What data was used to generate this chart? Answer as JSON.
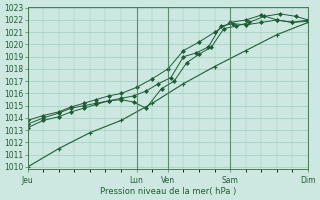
{
  "xlabel": "Pression niveau de la mer( hPa )",
  "bg_color": "#cce8e0",
  "grid_color": "#9ecfbe",
  "line_color": "#1e5c35",
  "vline_color": "#4a7a5a",
  "ylim_min": 1010,
  "ylim_max": 1023,
  "yticks": [
    1010,
    1011,
    1012,
    1013,
    1014,
    1015,
    1016,
    1017,
    1018,
    1019,
    1020,
    1021,
    1022,
    1023
  ],
  "xtick_labels": [
    "Jeu",
    "Lun",
    "Ven",
    "Sam",
    "Dim"
  ],
  "xtick_positions": [
    0,
    3.5,
    4.5,
    6.5,
    9.0
  ],
  "xlim_min": 0,
  "xlim_max": 9.0,
  "line1_x": [
    0,
    0.5,
    1.0,
    1.4,
    1.8,
    2.2,
    2.6,
    3.0,
    3.4,
    3.8,
    4.2,
    4.6,
    5.0,
    5.4,
    5.8,
    6.2,
    6.6,
    7.0,
    7.5,
    8.0,
    8.5,
    9.0
  ],
  "line1_y": [
    1013.2,
    1013.8,
    1014.1,
    1014.5,
    1014.8,
    1015.1,
    1015.4,
    1015.6,
    1015.8,
    1016.2,
    1016.8,
    1017.3,
    1019.0,
    1019.3,
    1019.8,
    1021.5,
    1021.7,
    1021.6,
    1021.8,
    1022.0,
    1021.8,
    1021.9
  ],
  "line2_x": [
    0,
    0.5,
    1.0,
    1.4,
    1.8,
    2.2,
    2.6,
    3.0,
    3.4,
    3.8,
    4.3,
    4.7,
    5.1,
    5.5,
    5.9,
    6.3,
    6.7,
    7.1,
    7.6,
    8.1,
    8.6,
    9.0
  ],
  "line2_y": [
    1013.5,
    1014.0,
    1014.4,
    1014.8,
    1015.0,
    1015.2,
    1015.4,
    1015.5,
    1015.3,
    1014.8,
    1016.4,
    1017.0,
    1018.5,
    1019.2,
    1019.8,
    1021.3,
    1021.5,
    1021.8,
    1022.3,
    1022.5,
    1022.3,
    1022.0
  ],
  "line3_x": [
    0,
    0.5,
    1.0,
    1.4,
    1.8,
    2.2,
    2.6,
    3.0,
    3.5,
    4.0,
    4.5,
    5.0,
    5.5,
    6.0,
    6.5,
    7.0,
    7.5,
    8.0,
    8.5,
    9.0
  ],
  "line3_y": [
    1013.8,
    1014.2,
    1014.5,
    1014.9,
    1015.2,
    1015.5,
    1015.8,
    1016.0,
    1016.5,
    1017.2,
    1018.0,
    1019.5,
    1020.2,
    1021.0,
    1021.8,
    1022.0,
    1022.4,
    1022.0,
    1021.8,
    1022.0
  ],
  "line4_x": [
    0,
    1.0,
    2.0,
    3.0,
    4.0,
    5.0,
    6.0,
    7.0,
    8.0,
    9.0
  ],
  "line4_y": [
    1010.0,
    1011.5,
    1012.8,
    1013.8,
    1015.2,
    1016.8,
    1018.2,
    1019.5,
    1020.8,
    1021.8
  ],
  "tick_fontsize": 5.5,
  "xlabel_fontsize": 6.0
}
